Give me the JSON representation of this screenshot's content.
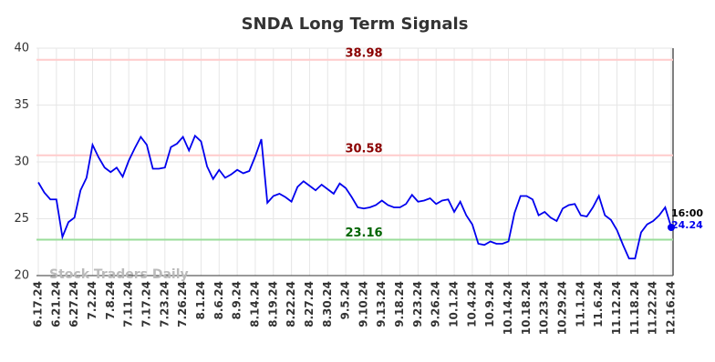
{
  "chart_data": {
    "type": "line",
    "title": "SNDA Long Term Signals",
    "watermark": "Stock Traders Daily",
    "categories": [
      "6.17.24",
      null,
      null,
      "6.21.24",
      null,
      null,
      "6.27.24",
      null,
      null,
      "7.2.24",
      null,
      null,
      "7.8.24",
      null,
      null,
      "7.11.24",
      null,
      null,
      "7.17.24",
      null,
      null,
      "7.23.24",
      null,
      null,
      "7.26.24",
      null,
      null,
      "8.1.24",
      null,
      null,
      "8.6.24",
      null,
      null,
      "8.9.24",
      null,
      null,
      "8.14.24",
      null,
      null,
      "8.19.24",
      null,
      null,
      "8.22.24",
      null,
      null,
      "8.27.24",
      null,
      null,
      "8.30.24",
      null,
      null,
      "9.5.24",
      null,
      null,
      "9.10.24",
      null,
      null,
      "9.13.24",
      null,
      null,
      "9.18.24",
      null,
      null,
      "9.23.24",
      null,
      null,
      "9.26.24",
      null,
      null,
      "10.1.24",
      null,
      null,
      "10.4.24",
      null,
      null,
      "10.9.24",
      null,
      null,
      "10.14.24",
      null,
      null,
      "10.18.24",
      null,
      null,
      "10.23.24",
      null,
      null,
      "10.29.24",
      null,
      null,
      "11.1.24",
      null,
      null,
      "11.6.24",
      null,
      null,
      "11.12.24",
      null,
      null,
      "11.18.24",
      null,
      null,
      "11.22.24",
      null,
      null,
      "12.16.24"
    ],
    "series": [
      {
        "color": "#0000ee",
        "values": [
          28.2,
          27.3,
          26.7,
          26.7,
          23.4,
          24.7,
          25.1,
          27.5,
          28.6,
          31.5,
          30.4,
          29.5,
          29.1,
          29.5,
          28.7,
          30.1,
          31.2,
          32.2,
          31.5,
          29.4,
          29.4,
          29.5,
          31.3,
          31.6,
          32.2,
          31.0,
          32.3,
          31.8,
          29.6,
          28.5,
          29.3,
          28.6,
          28.9,
          29.3,
          29.0,
          29.2,
          30.5,
          32.0,
          26.4,
          27.0,
          27.2,
          26.9,
          26.5,
          27.8,
          28.3,
          27.9,
          27.5,
          28.0,
          27.6,
          27.2,
          28.1,
          27.7,
          26.9,
          26.0,
          25.9,
          26.0,
          26.2,
          26.6,
          26.2,
          26.0,
          26.0,
          26.3,
          27.1,
          26.5,
          26.6,
          26.8,
          26.3,
          26.6,
          26.7,
          25.6,
          26.5,
          25.3,
          24.5,
          22.8,
          22.7,
          23.0,
          22.8,
          22.8,
          23.0,
          25.5,
          27.0,
          27.0,
          26.7,
          25.3,
          25.6,
          25.1,
          24.8,
          25.9,
          26.2,
          26.3,
          25.3,
          25.2,
          26.0,
          27.0,
          25.3,
          24.9,
          24.0,
          22.7,
          21.5,
          21.5,
          23.8,
          24.5,
          24.8,
          25.3,
          26.0,
          24.24
        ]
      }
    ],
    "last_point_label": "16:00",
    "levels": [
      {
        "value": 38.98,
        "color": "#ffcccc",
        "label_color": "#8b0000"
      },
      {
        "value": 30.58,
        "color": "#ffcccc",
        "label_color": "#8b0000"
      },
      {
        "value": 23.16,
        "color": "#99dd99",
        "label_color": "#006400"
      }
    ],
    "ylim": [
      20,
      40
    ],
    "yticks": [
      20,
      25,
      30,
      35,
      40
    ],
    "grid": true
  }
}
